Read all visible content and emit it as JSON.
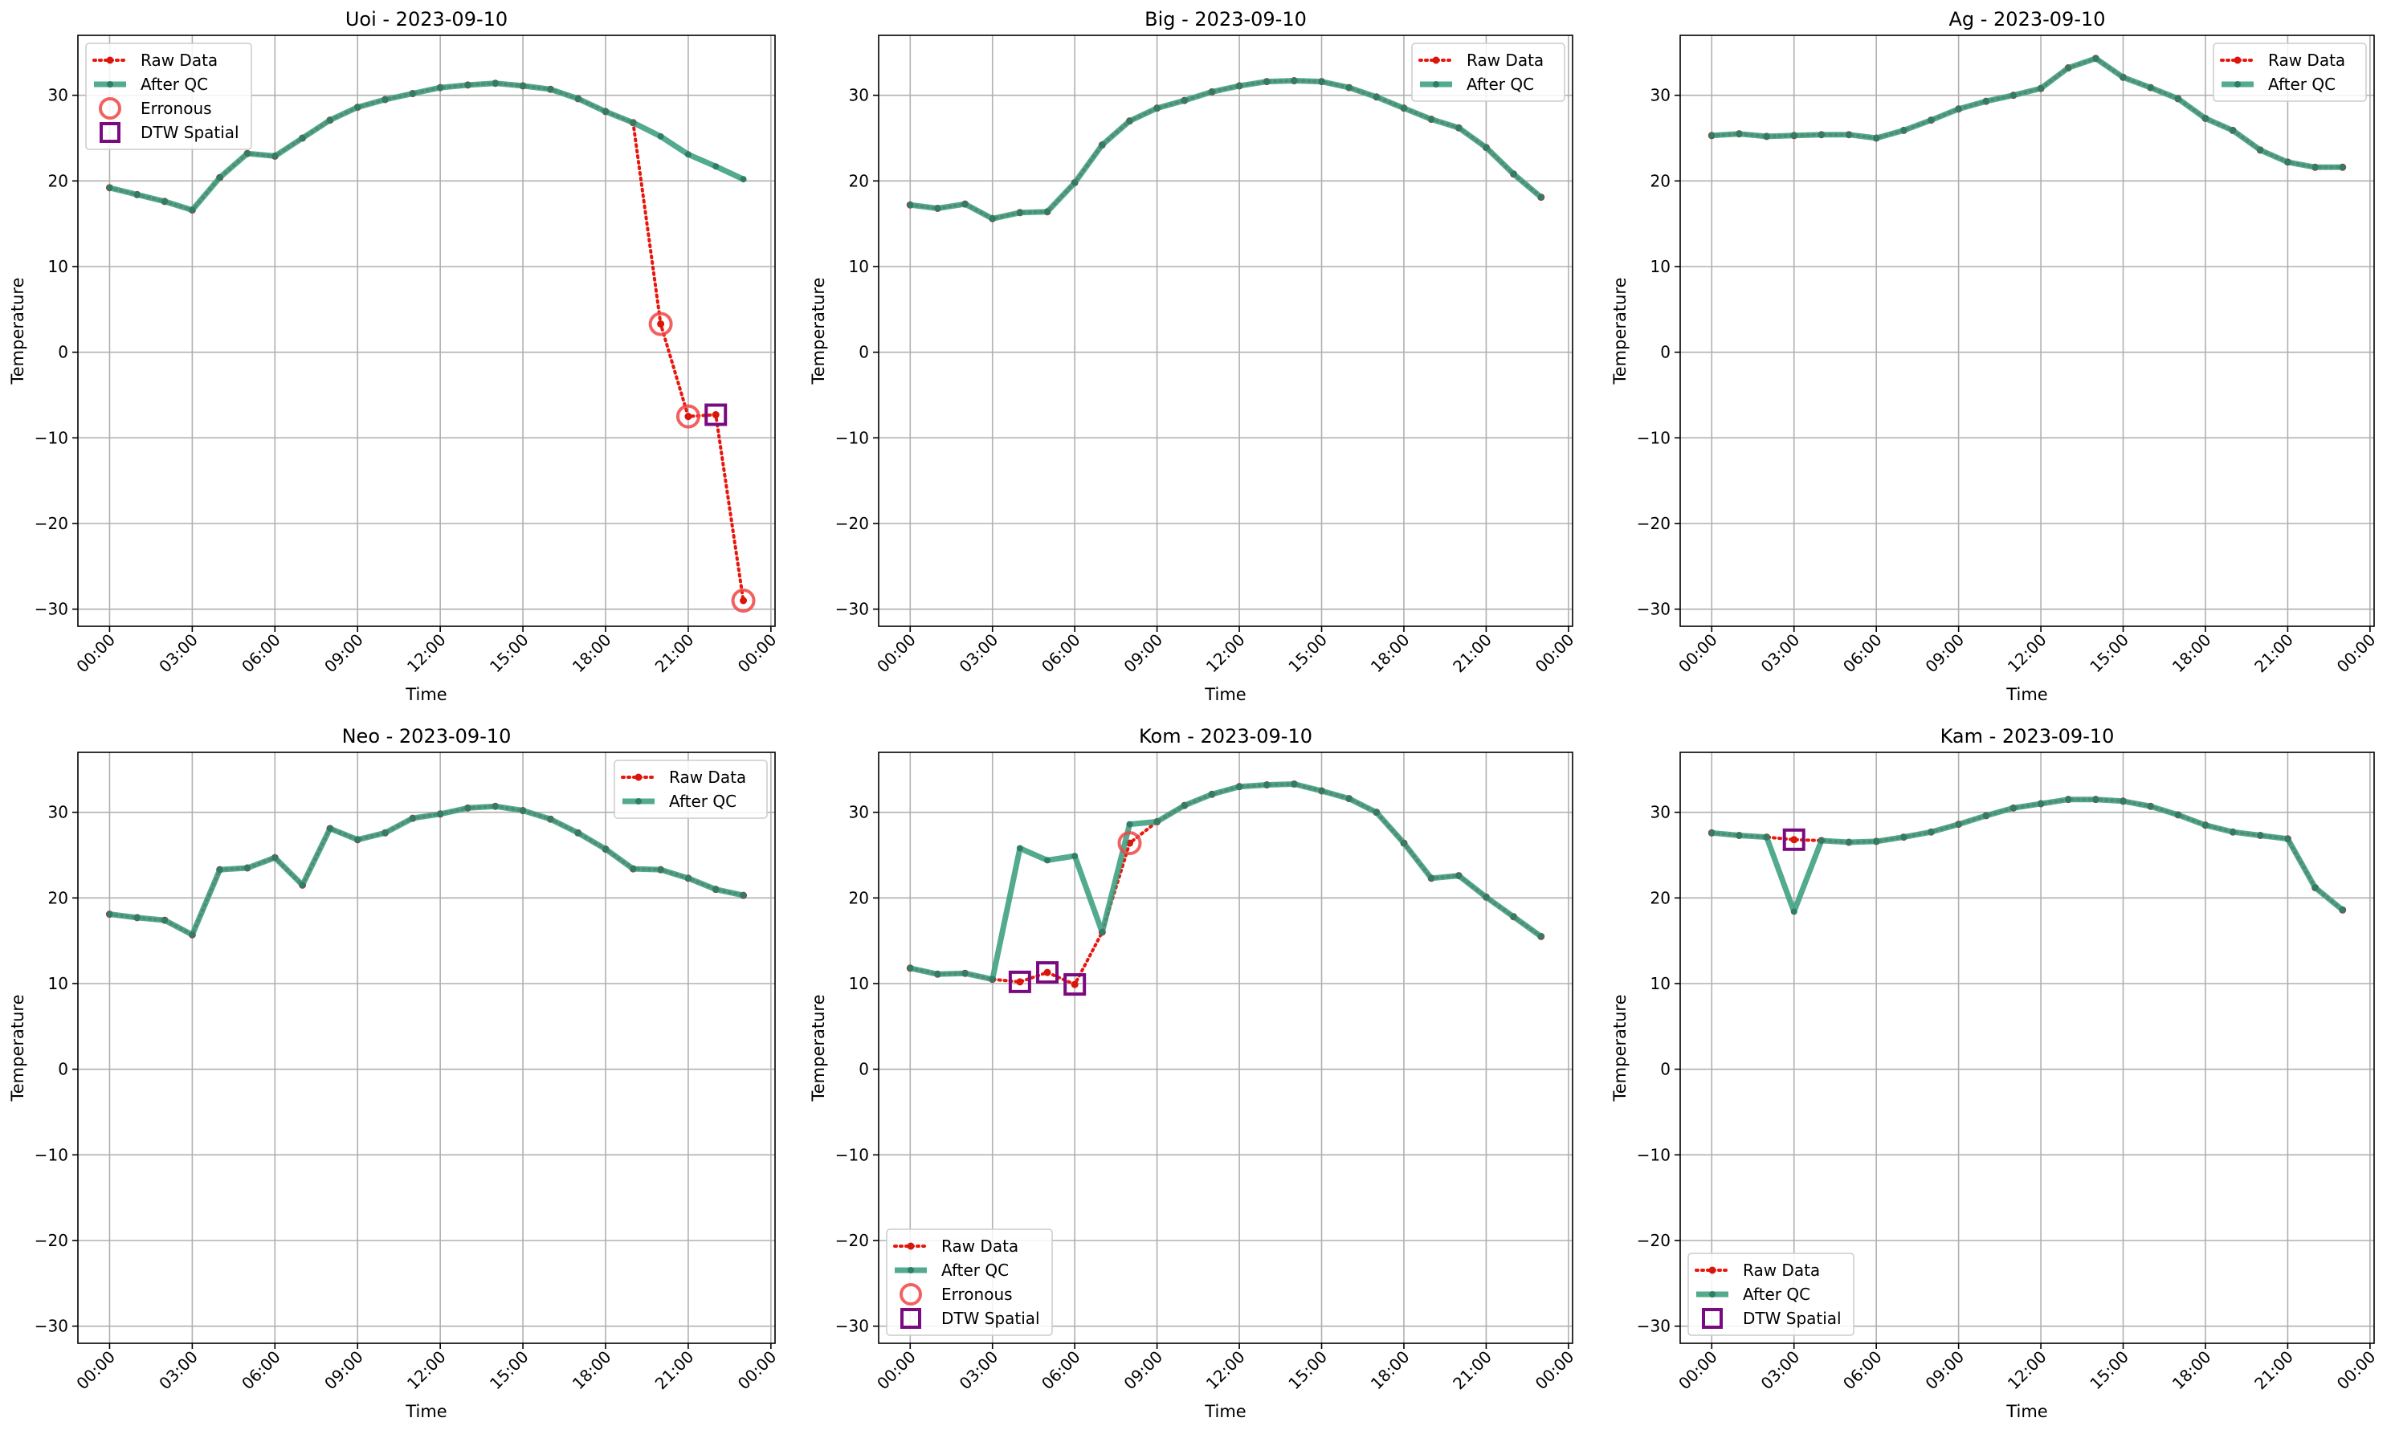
{
  "chart_data": [
    {
      "type": "line",
      "title": "Uoi - 2023-09-10",
      "xlabel": "Time",
      "ylabel": "Temperature",
      "x_unit": "hours",
      "x_tick_labels": [
        "00:00",
        "03:00",
        "06:00",
        "09:00",
        "12:00",
        "15:00",
        "18:00",
        "21:00",
        "00:00"
      ],
      "x_ticks_hours": [
        0,
        3,
        6,
        9,
        12,
        15,
        18,
        21,
        24
      ],
      "y_ticks": [
        -30,
        -20,
        -10,
        0,
        10,
        20,
        30
      ],
      "ylim": [
        -32,
        37
      ],
      "grid": true,
      "legend_position": "top-left",
      "legend": [
        "Raw Data",
        "After QC",
        "Erronous",
        "DTW Spatial"
      ],
      "x_hours": [
        0,
        1,
        2,
        3,
        4,
        5,
        6,
        7,
        8,
        9,
        10,
        11,
        12,
        13,
        14,
        15,
        16,
        17,
        18,
        19,
        20,
        21,
        22,
        23
      ],
      "raw": [
        19.2,
        18.4,
        17.6,
        16.6,
        20.4,
        23.2,
        22.9,
        25.0,
        27.1,
        28.6,
        29.5,
        30.2,
        30.9,
        31.2,
        31.4,
        31.1,
        30.7,
        29.6,
        28.1,
        26.8,
        3.3,
        -7.5,
        -7.3,
        -29.0
      ],
      "after_qc": [
        19.2,
        18.4,
        17.6,
        16.6,
        20.4,
        23.2,
        22.9,
        25.0,
        27.1,
        28.6,
        29.5,
        30.2,
        30.9,
        31.2,
        31.4,
        31.1,
        30.7,
        29.6,
        28.1,
        26.8,
        25.2,
        23.1,
        21.7,
        20.2
      ],
      "erroneous": [
        {
          "x": 20,
          "y": 3.3
        },
        {
          "x": 21,
          "y": -7.5
        },
        {
          "x": 23,
          "y": -29.0
        }
      ],
      "dtw_spatial": [
        {
          "x": 22,
          "y": -7.3
        }
      ]
    },
    {
      "type": "line",
      "title": "Big - 2023-09-10",
      "xlabel": "Time",
      "ylabel": "Temperature",
      "x_unit": "hours",
      "x_tick_labels": [
        "00:00",
        "03:00",
        "06:00",
        "09:00",
        "12:00",
        "15:00",
        "18:00",
        "21:00",
        "00:00"
      ],
      "x_ticks_hours": [
        0,
        3,
        6,
        9,
        12,
        15,
        18,
        21,
        24
      ],
      "y_ticks": [
        -30,
        -20,
        -10,
        0,
        10,
        20,
        30
      ],
      "ylim": [
        -32,
        37
      ],
      "grid": true,
      "legend_position": "top-right",
      "legend": [
        "Raw Data",
        "After QC"
      ],
      "x_hours": [
        0,
        1,
        2,
        3,
        4,
        5,
        6,
        7,
        8,
        9,
        10,
        11,
        12,
        13,
        14,
        15,
        16,
        17,
        18,
        19,
        20,
        21,
        22,
        23
      ],
      "raw": [
        17.2,
        16.8,
        17.3,
        15.6,
        16.3,
        16.4,
        19.8,
        24.2,
        27.0,
        28.5,
        29.4,
        30.4,
        31.1,
        31.6,
        31.7,
        31.6,
        30.9,
        29.8,
        28.5,
        27.2,
        26.2,
        23.9,
        20.8,
        18.1
      ],
      "after_qc": [
        17.2,
        16.8,
        17.3,
        15.6,
        16.3,
        16.4,
        19.8,
        24.2,
        27.0,
        28.5,
        29.4,
        30.4,
        31.1,
        31.6,
        31.7,
        31.6,
        30.9,
        29.8,
        28.5,
        27.2,
        26.2,
        23.9,
        20.8,
        18.1
      ],
      "erroneous": [],
      "dtw_spatial": []
    },
    {
      "type": "line",
      "title": "Ag - 2023-09-10",
      "xlabel": "Time",
      "ylabel": "Temperature",
      "x_unit": "hours",
      "x_tick_labels": [
        "00:00",
        "03:00",
        "06:00",
        "09:00",
        "12:00",
        "15:00",
        "18:00",
        "21:00",
        "00:00"
      ],
      "x_ticks_hours": [
        0,
        3,
        6,
        9,
        12,
        15,
        18,
        21,
        24
      ],
      "y_ticks": [
        -30,
        -20,
        -10,
        0,
        10,
        20,
        30
      ],
      "ylim": [
        -32,
        37
      ],
      "grid": true,
      "legend_position": "top-right",
      "legend": [
        "Raw Data",
        "After QC"
      ],
      "x_hours": [
        0,
        1,
        2,
        3,
        4,
        5,
        6,
        7,
        8,
        9,
        10,
        11,
        12,
        13,
        14,
        15,
        16,
        17,
        18,
        19,
        20,
        21,
        22,
        23
      ],
      "raw": [
        25.3,
        25.5,
        25.2,
        25.3,
        25.4,
        25.4,
        25.0,
        25.9,
        27.1,
        28.4,
        29.3,
        30.0,
        30.8,
        33.2,
        34.3,
        32.1,
        30.9,
        29.6,
        27.3,
        25.9,
        23.6,
        22.2,
        21.6,
        21.6
      ],
      "after_qc": [
        25.3,
        25.5,
        25.2,
        25.3,
        25.4,
        25.4,
        25.0,
        25.9,
        27.1,
        28.4,
        29.3,
        30.0,
        30.8,
        33.2,
        34.3,
        32.1,
        30.9,
        29.6,
        27.3,
        25.9,
        23.6,
        22.2,
        21.6,
        21.6
      ],
      "erroneous": [],
      "dtw_spatial": []
    },
    {
      "type": "line",
      "title": "Neo - 2023-09-10",
      "xlabel": "Time",
      "ylabel": "Temperature",
      "x_unit": "hours",
      "x_tick_labels": [
        "00:00",
        "03:00",
        "06:00",
        "09:00",
        "12:00",
        "15:00",
        "18:00",
        "21:00",
        "00:00"
      ],
      "x_ticks_hours": [
        0,
        3,
        6,
        9,
        12,
        15,
        18,
        21,
        24
      ],
      "y_ticks": [
        -30,
        -20,
        -10,
        0,
        10,
        20,
        30
      ],
      "ylim": [
        -32,
        37
      ],
      "grid": true,
      "legend_position": "top-right",
      "legend": [
        "Raw Data",
        "After QC"
      ],
      "x_hours": [
        0,
        1,
        2,
        3,
        4,
        5,
        6,
        7,
        8,
        9,
        10,
        11,
        12,
        13,
        14,
        15,
        16,
        17,
        18,
        19,
        20,
        21,
        22,
        23
      ],
      "raw": [
        18.1,
        17.7,
        17.4,
        15.7,
        23.3,
        23.5,
        24.7,
        21.5,
        28.1,
        26.8,
        27.6,
        29.3,
        29.8,
        30.5,
        30.7,
        30.2,
        29.2,
        27.6,
        25.7,
        23.4,
        23.3,
        22.3,
        21.0,
        20.3
      ],
      "after_qc": [
        18.1,
        17.7,
        17.4,
        15.7,
        23.3,
        23.5,
        24.7,
        21.5,
        28.1,
        26.8,
        27.6,
        29.3,
        29.8,
        30.5,
        30.7,
        30.2,
        29.2,
        27.6,
        25.7,
        23.4,
        23.3,
        22.3,
        21.0,
        20.3
      ],
      "erroneous": [],
      "dtw_spatial": []
    },
    {
      "type": "line",
      "title": "Kom - 2023-09-10",
      "xlabel": "Time",
      "ylabel": "Temperature",
      "x_unit": "hours",
      "x_tick_labels": [
        "00:00",
        "03:00",
        "06:00",
        "09:00",
        "12:00",
        "15:00",
        "18:00",
        "21:00",
        "00:00"
      ],
      "x_ticks_hours": [
        0,
        3,
        6,
        9,
        12,
        15,
        18,
        21,
        24
      ],
      "y_ticks": [
        -30,
        -20,
        -10,
        0,
        10,
        20,
        30
      ],
      "ylim": [
        -32,
        37
      ],
      "grid": true,
      "legend_position": "bottom-left",
      "legend": [
        "Raw Data",
        "After QC",
        "Erronous",
        "DTW Spatial"
      ],
      "x_hours": [
        0,
        1,
        2,
        3,
        4,
        5,
        6,
        7,
        8,
        9,
        10,
        11,
        12,
        13,
        14,
        15,
        16,
        17,
        18,
        19,
        20,
        21,
        22,
        23
      ],
      "raw": [
        11.8,
        11.1,
        11.2,
        10.5,
        10.2,
        11.3,
        9.9,
        16.0,
        26.4,
        28.9,
        30.8,
        32.1,
        33.0,
        33.2,
        33.3,
        32.5,
        31.6,
        30.0,
        26.4,
        22.3,
        22.6,
        20.1,
        17.8,
        15.5
      ],
      "after_qc": [
        11.8,
        11.1,
        11.2,
        10.5,
        25.8,
        24.4,
        24.9,
        16.0,
        28.6,
        28.9,
        30.8,
        32.1,
        33.0,
        33.2,
        33.3,
        32.5,
        31.6,
        30.0,
        26.4,
        22.3,
        22.6,
        20.1,
        17.8,
        15.5
      ],
      "erroneous": [
        {
          "x": 8,
          "y": 26.4
        }
      ],
      "dtw_spatial": [
        {
          "x": 4,
          "y": 10.2
        },
        {
          "x": 5,
          "y": 11.3
        },
        {
          "x": 6,
          "y": 9.9
        }
      ]
    },
    {
      "type": "line",
      "title": "Kam - 2023-09-10",
      "xlabel": "Time",
      "ylabel": "Temperature",
      "x_unit": "hours",
      "x_tick_labels": [
        "00:00",
        "03:00",
        "06:00",
        "09:00",
        "12:00",
        "15:00",
        "18:00",
        "21:00",
        "00:00"
      ],
      "x_ticks_hours": [
        0,
        3,
        6,
        9,
        12,
        15,
        18,
        21,
        24
      ],
      "y_ticks": [
        -30,
        -20,
        -10,
        0,
        10,
        20,
        30
      ],
      "ylim": [
        -32,
        37
      ],
      "grid": true,
      "legend_position": "bottom-left",
      "legend": [
        "Raw Data",
        "After QC",
        "DTW Spatial"
      ],
      "x_hours": [
        0,
        1,
        2,
        3,
        4,
        5,
        6,
        7,
        8,
        9,
        10,
        11,
        12,
        13,
        14,
        15,
        16,
        17,
        18,
        19,
        20,
        21,
        22,
        23
      ],
      "raw": [
        27.6,
        27.3,
        27.1,
        26.8,
        26.7,
        26.5,
        26.6,
        27.1,
        27.7,
        28.6,
        29.6,
        30.5,
        31.0,
        31.5,
        31.5,
        31.3,
        30.7,
        29.7,
        28.5,
        27.7,
        27.3,
        26.9,
        21.2,
        18.6
      ],
      "after_qc": [
        27.6,
        27.3,
        27.1,
        18.4,
        26.7,
        26.5,
        26.6,
        27.1,
        27.7,
        28.6,
        29.6,
        30.5,
        31.0,
        31.5,
        31.5,
        31.3,
        30.7,
        29.7,
        28.5,
        27.7,
        27.3,
        26.9,
        21.2,
        18.6
      ],
      "erroneous": [],
      "dtw_spatial": [
        {
          "x": 3,
          "y": 26.8
        }
      ]
    }
  ],
  "colors": {
    "raw": "#e8160c",
    "raw_marker": "#d8160c",
    "after_qc": "#3a9e80",
    "after_qc_marker": "#2f7d66",
    "erroneous": "#f04545",
    "dtw_spatial": "#7a0a80",
    "grid": "#b0b0b0"
  }
}
